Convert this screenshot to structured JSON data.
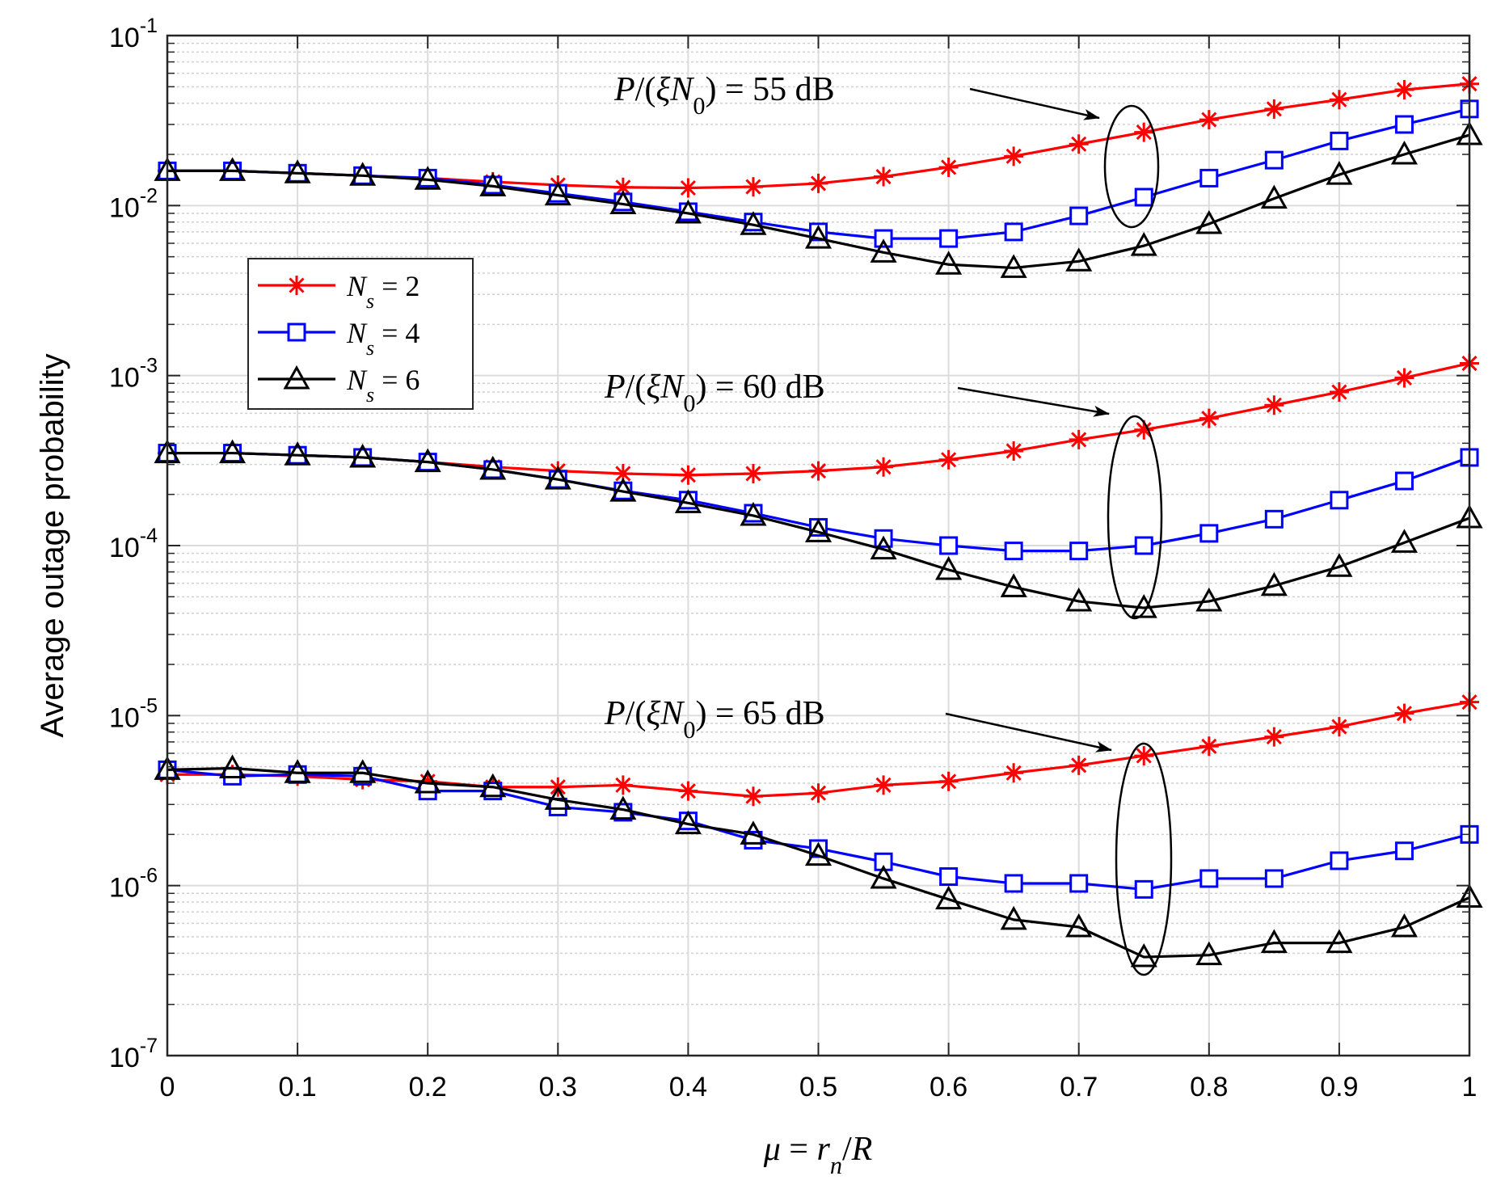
{
  "chart_data": {
    "type": "line",
    "title": "",
    "xlabel": "μ = r_n/R",
    "ylabel": "Average outage probability",
    "yscale": "log",
    "xlim": [
      0,
      1
    ],
    "ylim": [
      1e-07,
      0.1
    ],
    "grid": true,
    "x_ticks": [
      "0",
      "0.1",
      "0.2",
      "0.3",
      "0.4",
      "0.5",
      "0.6",
      "0.7",
      "0.8",
      "0.9",
      "1"
    ],
    "y_ticks": [
      {
        "base": "10",
        "exp": "-7"
      },
      {
        "base": "10",
        "exp": "-6"
      },
      {
        "base": "10",
        "exp": "-5"
      },
      {
        "base": "10",
        "exp": "-4"
      },
      {
        "base": "10",
        "exp": "-3"
      },
      {
        "base": "10",
        "exp": "-2"
      },
      {
        "base": "10",
        "exp": "-1"
      }
    ],
    "x": [
      0,
      0.05,
      0.1,
      0.15,
      0.2,
      0.25,
      0.3,
      0.35,
      0.4,
      0.45,
      0.5,
      0.55,
      0.6,
      0.65,
      0.7,
      0.75,
      0.8,
      0.85,
      0.9,
      0.95,
      1
    ],
    "legend": {
      "placement": "center-left",
      "entries": [
        {
          "label": "N_s = 2",
          "color": "#ff0000",
          "marker": "asterisk"
        },
        {
          "label": "N_s = 4",
          "color": "#0000ff",
          "marker": "square"
        },
        {
          "label": "N_s = 6",
          "color": "#000000",
          "marker": "triangle"
        }
      ]
    },
    "annotations": [
      {
        "text": "P/(ξN_0) = 55 dB",
        "group": "55 dB"
      },
      {
        "text": "P/(ξN_0) = 60 dB",
        "group": "60 dB"
      },
      {
        "text": "P/(ξN_0) = 65 dB",
        "group": "65 dB"
      }
    ],
    "series": [
      {
        "name": "N_s = 2",
        "group": "55 dB",
        "color": "#ff0000",
        "marker": "asterisk",
        "values": [
          0.016,
          0.016,
          0.0155,
          0.015,
          0.0145,
          0.0138,
          0.0132,
          0.0128,
          0.0127,
          0.0129,
          0.0135,
          0.0148,
          0.0168,
          0.0195,
          0.023,
          0.027,
          0.032,
          0.037,
          0.042,
          0.048,
          0.052
        ]
      },
      {
        "name": "N_s = 4",
        "group": "55 dB",
        "color": "#0000ff",
        "marker": "square",
        "values": [
          0.016,
          0.016,
          0.0155,
          0.015,
          0.0145,
          0.0132,
          0.0118,
          0.0105,
          0.0092,
          0.008,
          0.007,
          0.0064,
          0.0064,
          0.007,
          0.0087,
          0.0112,
          0.0145,
          0.0185,
          0.024,
          0.03,
          0.037
        ]
      },
      {
        "name": "N_s = 6",
        "group": "55 dB",
        "color": "#000000",
        "marker": "triangle",
        "values": [
          0.016,
          0.016,
          0.0155,
          0.015,
          0.0142,
          0.013,
          0.0115,
          0.0102,
          0.009,
          0.0077,
          0.0064,
          0.0053,
          0.0045,
          0.0043,
          0.0047,
          0.0058,
          0.0078,
          0.011,
          0.0152,
          0.02,
          0.026
        ]
      },
      {
        "name": "N_s = 2",
        "group": "60 dB",
        "color": "#ff0000",
        "marker": "asterisk",
        "values": [
          0.00035,
          0.00035,
          0.00034,
          0.00033,
          0.00031,
          0.00029,
          0.000275,
          0.000265,
          0.00026,
          0.000265,
          0.000275,
          0.00029,
          0.00032,
          0.00036,
          0.00042,
          0.00048,
          0.00056,
          0.00067,
          0.0008,
          0.00097,
          0.00118
        ]
      },
      {
        "name": "N_s = 4",
        "group": "60 dB",
        "color": "#0000ff",
        "marker": "square",
        "values": [
          0.00035,
          0.00035,
          0.00034,
          0.00033,
          0.00031,
          0.00028,
          0.000245,
          0.00021,
          0.000185,
          0.000155,
          0.000128,
          0.00011,
          0.0001,
          9.3e-05,
          9.3e-05,
          0.0001,
          0.000118,
          0.000143,
          0.000185,
          0.00024,
          0.00033
        ]
      },
      {
        "name": "N_s = 6",
        "group": "60 dB",
        "color": "#000000",
        "marker": "triangle",
        "values": [
          0.00035,
          0.00035,
          0.00034,
          0.00033,
          0.00031,
          0.00028,
          0.000245,
          0.000208,
          0.000178,
          0.00015,
          0.00012,
          9.5e-05,
          7.2e-05,
          5.7e-05,
          4.7e-05,
          4.3e-05,
          4.7e-05,
          5.8e-05,
          7.5e-05,
          0.000104,
          0.000145
        ]
      },
      {
        "name": "N_s = 2",
        "group": "65 dB",
        "color": "#ff0000",
        "marker": "asterisk",
        "values": [
          4.5e-06,
          4.5e-06,
          4.4e-06,
          4.2e-06,
          4.1e-06,
          3.8e-06,
          3.8e-06,
          3.9e-06,
          3.6e-06,
          3.35e-06,
          3.5e-06,
          3.9e-06,
          4.1e-06,
          4.6e-06,
          5.1e-06,
          5.8e-06,
          6.6e-06,
          7.5e-06,
          8.6e-06,
          1.03e-05,
          1.2e-05
        ]
      },
      {
        "name": "N_s = 4",
        "group": "65 dB",
        "color": "#0000ff",
        "marker": "square",
        "values": [
          4.8e-06,
          4.4e-06,
          4.5e-06,
          4.4e-06,
          3.6e-06,
          3.6e-06,
          2.9e-06,
          2.7e-06,
          2.4e-06,
          1.85e-06,
          1.65e-06,
          1.38e-06,
          1.13e-06,
          1.03e-06,
          1.03e-06,
          9.5e-07,
          1.1e-06,
          1.1e-06,
          1.4e-06,
          1.6e-06,
          2e-06
        ]
      },
      {
        "name": "N_s = 6",
        "group": "65 dB",
        "color": "#000000",
        "marker": "triangle",
        "values": [
          4.8e-06,
          4.9e-06,
          4.6e-06,
          4.6e-06,
          4e-06,
          3.8e-06,
          3.2e-06,
          2.8e-06,
          2.3e-06,
          2e-06,
          1.5e-06,
          1.1e-06,
          8.3e-07,
          6.3e-07,
          5.7e-07,
          3.8e-07,
          3.9e-07,
          4.6e-07,
          4.6e-07,
          5.7e-07,
          8.5e-07
        ]
      }
    ]
  }
}
